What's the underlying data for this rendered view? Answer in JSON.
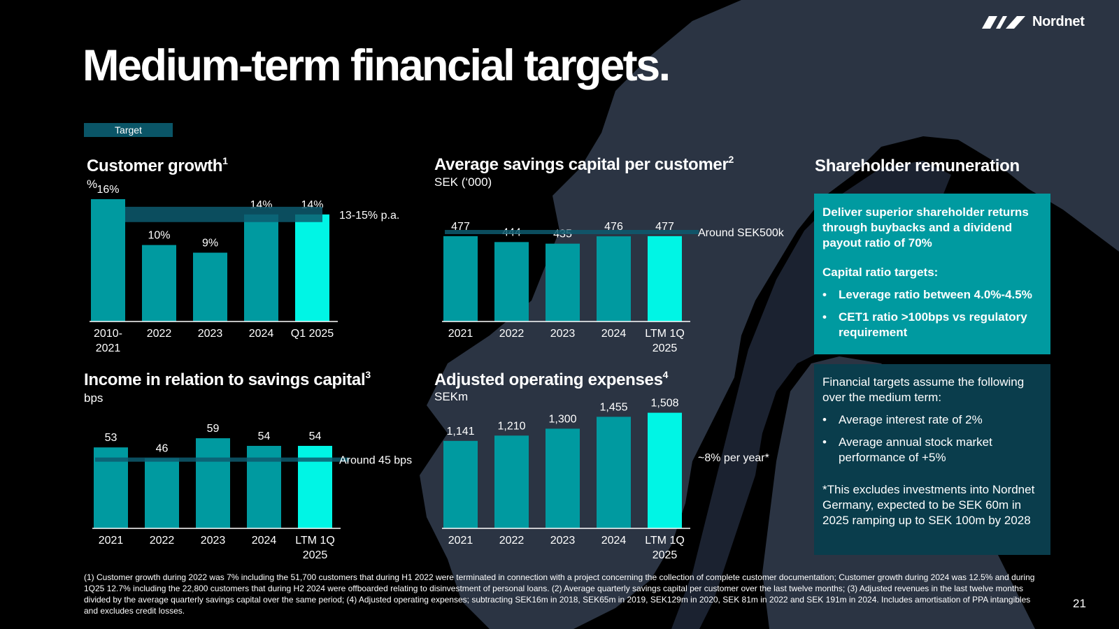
{
  "header": {
    "brand": "Nordnet",
    "title": "Medium-term financial targets.",
    "legend_label": "Target",
    "page_number": "21"
  },
  "colors": {
    "bar": "#009aa0",
    "bar_highlight": "#00f5e5",
    "target_band": "#0d5a6e",
    "panel_teal": "#009aa0",
    "panel_dark": "#0a3d4c",
    "background": "#000000"
  },
  "chart_data": [
    {
      "id": "customer",
      "type": "bar",
      "title": "Customer growth",
      "title_sup": "1",
      "unit": "%",
      "categories": [
        [
          "2010-",
          "2021"
        ],
        [
          "2022"
        ],
        [
          "2023"
        ],
        [
          "2024"
        ],
        [
          "Q1 2025"
        ]
      ],
      "values": [
        16,
        10,
        9,
        14,
        14
      ],
      "value_labels": [
        "16%",
        "10%",
        "9%",
        "14%",
        "14%"
      ],
      "highlight_index": 4,
      "ylim": [
        0,
        17
      ],
      "target_range": [
        13,
        15
      ],
      "target_label": "13-15% p.a."
    },
    {
      "id": "savings",
      "type": "bar",
      "title": "Average savings capital per customer",
      "title_sup": "2",
      "unit": "SEK (‘000)",
      "categories": [
        [
          "2021"
        ],
        [
          "2022"
        ],
        [
          "2023"
        ],
        [
          "2024"
        ],
        [
          "LTM 1Q",
          "2025"
        ]
      ],
      "values": [
        477,
        444,
        435,
        476,
        477
      ],
      "value_labels": [
        "477",
        "444",
        "435",
        "476",
        "477"
      ],
      "highlight_index": 4,
      "ylim": [
        0,
        500
      ],
      "target_value": 500,
      "target_label": "Around SEK500k"
    },
    {
      "id": "income",
      "type": "bar",
      "title": "Income in relation to savings capital",
      "title_sup": "3",
      "unit": "bps",
      "categories": [
        [
          "2021"
        ],
        [
          "2022"
        ],
        [
          "2023"
        ],
        [
          "2024"
        ],
        [
          "LTM 1Q",
          "2025"
        ]
      ],
      "values": [
        53,
        46,
        59,
        54,
        54
      ],
      "value_labels": [
        "53",
        "46",
        "59",
        "54",
        "54"
      ],
      "highlight_index": 4,
      "ylim": [
        0,
        70
      ],
      "target_value": 45,
      "target_label": "Around 45 bps"
    },
    {
      "id": "opex",
      "type": "bar",
      "title": "Adjusted operating expenses",
      "title_sup": "4",
      "unit": "SEKm",
      "categories": [
        [
          "2021"
        ],
        [
          "2022"
        ],
        [
          "2023"
        ],
        [
          "2024"
        ],
        [
          "LTM 1Q",
          "2025"
        ]
      ],
      "values": [
        1141,
        1210,
        1300,
        1455,
        1508
      ],
      "value_labels": [
        "1,141",
        "1,210",
        "1,300",
        "1,455",
        "1,508"
      ],
      "highlight_index": 4,
      "ylim": [
        0,
        1650
      ],
      "target_label": "~8% per year*"
    }
  ],
  "shareholder": {
    "title": "Shareholder remuneration",
    "intro": "Deliver superior shareholder returns through buybacks and a dividend payout ratio of 70%",
    "capital_heading": "Capital ratio targets:",
    "capital_items": [
      "Leverage ratio between 4.0%-4.5%",
      "CET1 ratio >100bps vs regulatory requirement"
    ]
  },
  "assumptions": {
    "intro": "Financial targets assume the following over the medium term:",
    "items": [
      "Average interest rate of 2%",
      "Average annual stock market performance of +5%"
    ],
    "note": "*This excludes investments into Nordnet Germany, expected to be SEK 60m in 2025 ramping up to SEK 100m by 2028"
  },
  "footnote": "(1) Customer growth during 2022 was 7% including the 51,700 customers that during H1 2022 were terminated in connection with a project concerning the collection of complete customer documentation; Customer growth during 2024 was 12.5% and during 1Q25 12.7% including the 22,800 customers that during H2 2024 were offboarded relating to disinvestment of personal loans. (2) Average quarterly savings capital per customer over the last twelve months; (3) Adjusted revenues in the last twelve months divided by the average quarterly savings capital over the same period; (4) Adjusted operating expenses; subtracting SEK16m in 2018, SEK65m in 2019, SEK129m in 2020, SEK 81m in 2022 and SEK 191m in 2024. Includes amortisation of PPA intangibles and excludes credit losses."
}
